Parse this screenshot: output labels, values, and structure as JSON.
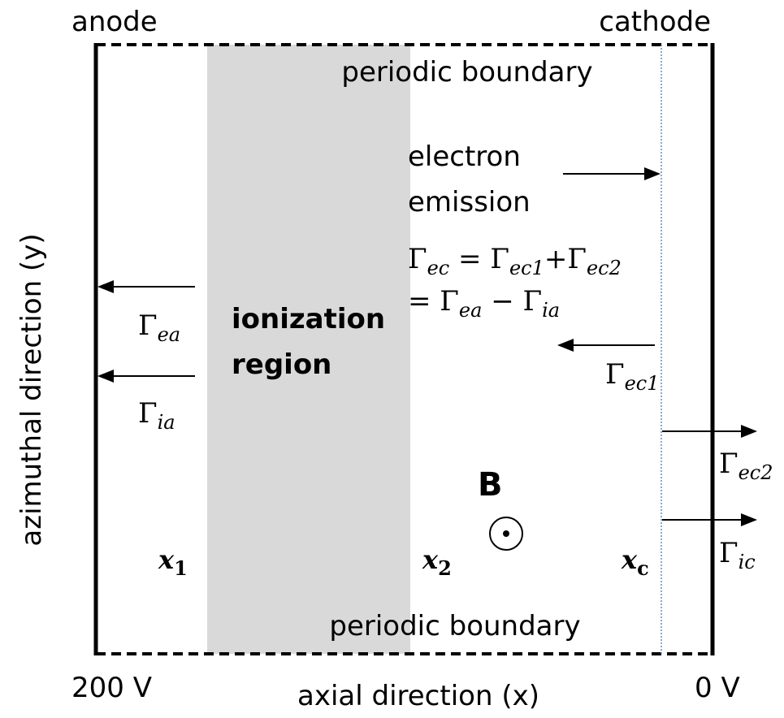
{
  "labels": {
    "anode": "anode",
    "cathode": "cathode",
    "top_boundary": "periodic boundary",
    "bottom_boundary": "periodic boundary",
    "y_axis": "azimuthal direction (y)",
    "x_axis": "axial direction (x)",
    "anode_voltage": "200 V",
    "cathode_voltage": "0 V",
    "region": [
      "ionization",
      "region"
    ],
    "emission": [
      "electron",
      "emission"
    ],
    "magnetic_field": "B"
  },
  "equation": [
    [
      {
        "t": "Γ"
      },
      {
        "sub": "ec"
      },
      {
        "t": " = Γ"
      },
      {
        "sub": "ec1"
      },
      {
        "t": "+Γ"
      },
      {
        "sub": "ec2"
      }
    ],
    [
      {
        "t": "= Γ"
      },
      {
        "sub": "ea"
      },
      {
        "t": " − Γ"
      },
      {
        "sub": "ia"
      }
    ]
  ],
  "fluxes": [
    {
      "symbol": "Γ",
      "sub": "ea"
    },
    {
      "symbol": "Γ",
      "sub": "ia"
    },
    {
      "symbol": "Γ",
      "sub": "ec1"
    },
    {
      "symbol": "Γ",
      "sub": "ec2"
    },
    {
      "symbol": "Γ",
      "sub": "ic"
    }
  ],
  "positions": [
    {
      "symbol": "x",
      "sub": "1"
    },
    {
      "symbol": "x",
      "sub": "2"
    },
    {
      "symbol": "x",
      "sub": "c"
    }
  ]
}
